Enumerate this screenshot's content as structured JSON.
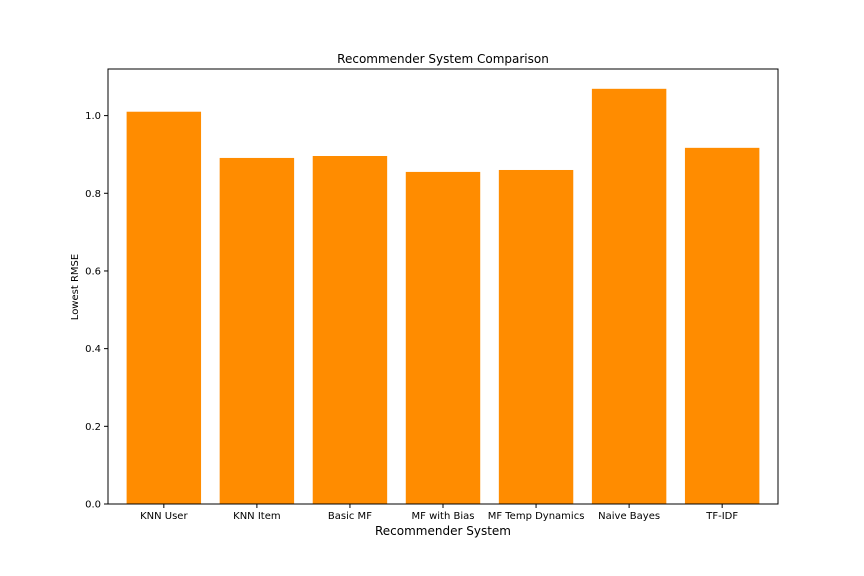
{
  "chart_data": {
    "type": "bar",
    "title": "Recommender System Comparison",
    "xlabel": "Recommender System",
    "ylabel": "Lowest RMSE",
    "categories": [
      "KNN User",
      "KNN Item",
      "Basic MF",
      "MF with Bias",
      "MF Temp Dynamics",
      "Naive Bayes",
      "TF-IDF"
    ],
    "values": [
      1.01,
      0.891,
      0.896,
      0.855,
      0.86,
      1.069,
      0.917
    ],
    "ylim": [
      0,
      1.12
    ],
    "yticks": [
      "0.0",
      "0.2",
      "0.4",
      "0.6",
      "0.8",
      "1.0"
    ],
    "bar_color": "#ff8c00",
    "grid": false,
    "legend": "none"
  }
}
